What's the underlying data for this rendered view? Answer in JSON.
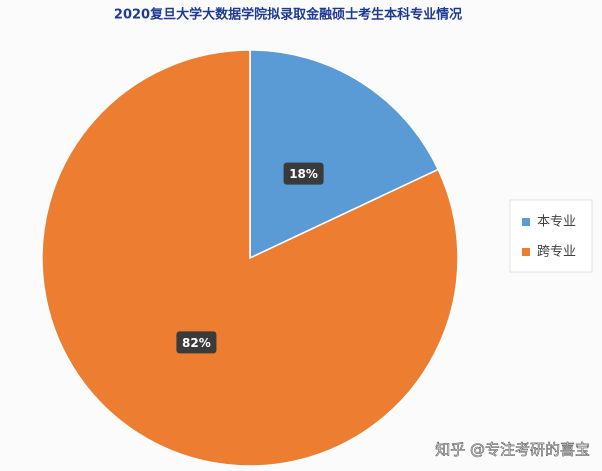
{
  "chart_data": {
    "type": "pie",
    "title": "2020复旦大学大数据学院拟录取金融硕士考生本科专业情况",
    "categories": [
      "本专业",
      "跨专业"
    ],
    "values": [
      18,
      82
    ],
    "value_labels": [
      "18%",
      "82%"
    ],
    "colors": [
      "#5b9bd5",
      "#ed7d31"
    ],
    "legend": "right",
    "watermark": "知乎 @专注考研的喜宝"
  }
}
